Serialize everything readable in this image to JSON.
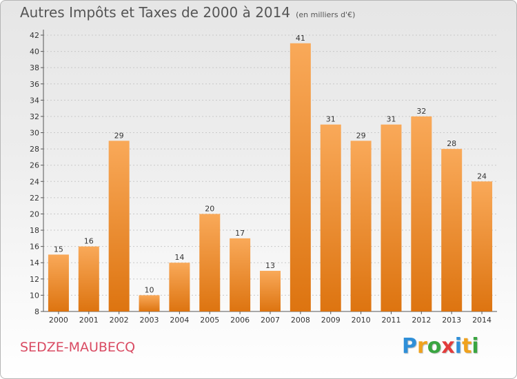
{
  "title": "Autres Impôts et Taxes de 2000 à 2014",
  "title_unit": "(en milliers d'€)",
  "commune": "SEDZE-MAUBECQ",
  "logo": {
    "letters": [
      "P",
      "r",
      "o",
      "x",
      "i",
      "t",
      "i"
    ],
    "colors": [
      "#2f8fd8",
      "#f0a21e",
      "#3aa541",
      "#e23c3c",
      "#2f8fd8",
      "#f0a21e",
      "#3aa541"
    ]
  },
  "colors": {
    "bar_top": "#f9a959",
    "bar_bottom": "#dd7410",
    "title": "#555555",
    "commune": "#d94a62"
  },
  "chart_data": {
    "type": "bar",
    "title": "Autres Impôts et Taxes de 2000 à 2014",
    "subtitle": "(en milliers d'€)",
    "categories": [
      "2000",
      "2001",
      "2002",
      "2003",
      "2004",
      "2005",
      "2006",
      "2007",
      "2008",
      "2009",
      "2010",
      "2011",
      "2012",
      "2013",
      "2014"
    ],
    "values": [
      15,
      16,
      29,
      10,
      14,
      20,
      17,
      13,
      41,
      31,
      29,
      31,
      32,
      28,
      24
    ],
    "yticks": [
      8,
      10,
      12,
      14,
      16,
      18,
      20,
      22,
      24,
      26,
      28,
      30,
      32,
      34,
      36,
      38,
      40,
      42
    ],
    "ylim": [
      8,
      42
    ],
    "xlabel": "",
    "ylabel": "",
    "grid": true,
    "legend": "none"
  }
}
